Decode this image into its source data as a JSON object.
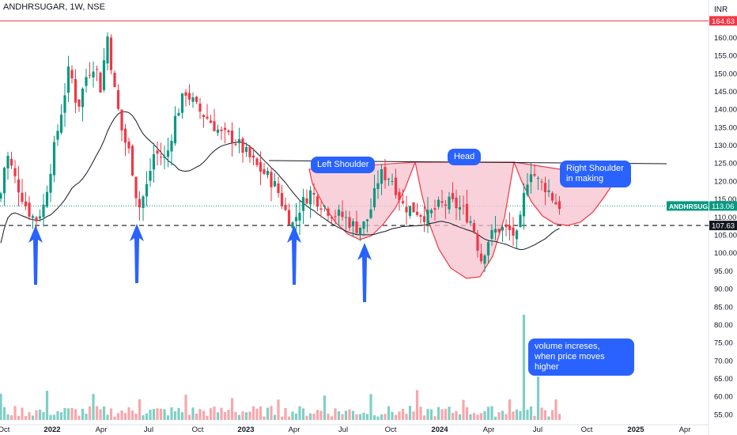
{
  "chart_data": {
    "type": "candlestick",
    "symbol_title": "ANDHRSUGAR, 1W, NSE",
    "currency": "INR",
    "y_axis": {
      "ticks": [
        55,
        60,
        65,
        70,
        75,
        80,
        85,
        90,
        95,
        100,
        105,
        110,
        115,
        120,
        125,
        130,
        135,
        140,
        145,
        150,
        155,
        160
      ],
      "ylim": [
        53,
        170
      ]
    },
    "x_axis": {
      "ticks": [
        "Oct",
        "2022",
        "Apr",
        "Jul",
        "Oct",
        "2023",
        "Apr",
        "Jul",
        "Oct",
        "2024",
        "Apr",
        "Jul",
        "Oct",
        "2025",
        "Apr"
      ],
      "bold_ticks": [
        "2022",
        "2023",
        "2024",
        "2025"
      ]
    },
    "price_tags": [
      {
        "label": "164.63",
        "value": 164.63,
        "color": "#f23645"
      },
      {
        "label": "ANDHRSUGAR",
        "value": 113.06,
        "color": "#089981",
        "with_value": "113.06"
      },
      {
        "label": "107.63",
        "value": 107.63,
        "color": "#131722"
      }
    ],
    "levels": {
      "resistance_red": 164.63,
      "support_dashed": 107.63,
      "last_price": 113.06
    },
    "annotations": {
      "left_shoulder": "Left Shoulder",
      "head": "Head",
      "right_shoulder": "Right Shoulder\nin making",
      "volume_note": "volume increses,\nwhen price moves higher"
    },
    "colors": {
      "up": "#089981",
      "down": "#f23645",
      "volume_up": "#7fcfc5",
      "volume_down": "#f7a7ac",
      "note_bg": "#2962ff",
      "pattern_fill": "#f7c1cf",
      "pattern_stroke": "#f23645",
      "arrow": "#2962ff",
      "moving_average": "#131722"
    }
  }
}
